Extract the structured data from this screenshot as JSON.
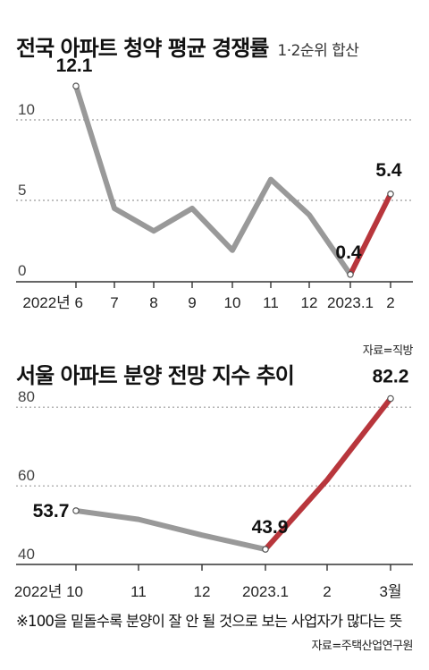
{
  "chart_data": [
    {
      "type": "line",
      "title": "전국 아파트 청약 평균 경쟁률",
      "subtitle": "1·2순위 합산",
      "source": "자료=직방",
      "x_labels": [
        "2022년 6",
        "7",
        "8",
        "9",
        "10",
        "11",
        "12",
        "2023.1",
        "2"
      ],
      "values": [
        12.1,
        4.5,
        3.1,
        4.5,
        1.9,
        6.3,
        4.1,
        0.4,
        5.4
      ],
      "y_ticks": [
        0,
        5,
        10
      ],
      "y_tick_labels": [
        "0",
        "5",
        "10"
      ],
      "ylim": [
        0,
        13
      ],
      "grid": "dotted horizontal",
      "highlight_from_index": 7,
      "labeled_points": [
        {
          "index": 0,
          "label": "12.1"
        },
        {
          "index": 7,
          "label": "0.4"
        },
        {
          "index": 8,
          "label": "5.4"
        }
      ],
      "colors": {
        "base": "#999999",
        "highlight": "#b8363c",
        "grid": "#9a9a9a"
      }
    },
    {
      "type": "line",
      "title": "서울 아파트 분양 전망 지수 추이",
      "source": "자료=주택산업연구원",
      "x_labels": [
        "2022년 10",
        "11",
        "12",
        "2023.1",
        "2",
        "3월"
      ],
      "values": [
        53.7,
        51.5,
        47.5,
        43.9,
        61.5,
        82.2
      ],
      "y_ticks": [
        40,
        60,
        80
      ],
      "y_tick_labels": [
        "40",
        "60",
        "80"
      ],
      "ylim": [
        38,
        88
      ],
      "grid": "dotted horizontal",
      "highlight_from_index": 3,
      "labeled_points": [
        {
          "index": 0,
          "label": "53.7"
        },
        {
          "index": 3,
          "label": "43.9"
        },
        {
          "index": 5,
          "label": "82.2"
        }
      ],
      "colors": {
        "base": "#999999",
        "highlight": "#b8363c",
        "grid": "#9a9a9a"
      }
    }
  ],
  "note": "※100을 밑돌수록 분양이 잘 안 될 것으로 보는 사업자가 많다는 뜻"
}
